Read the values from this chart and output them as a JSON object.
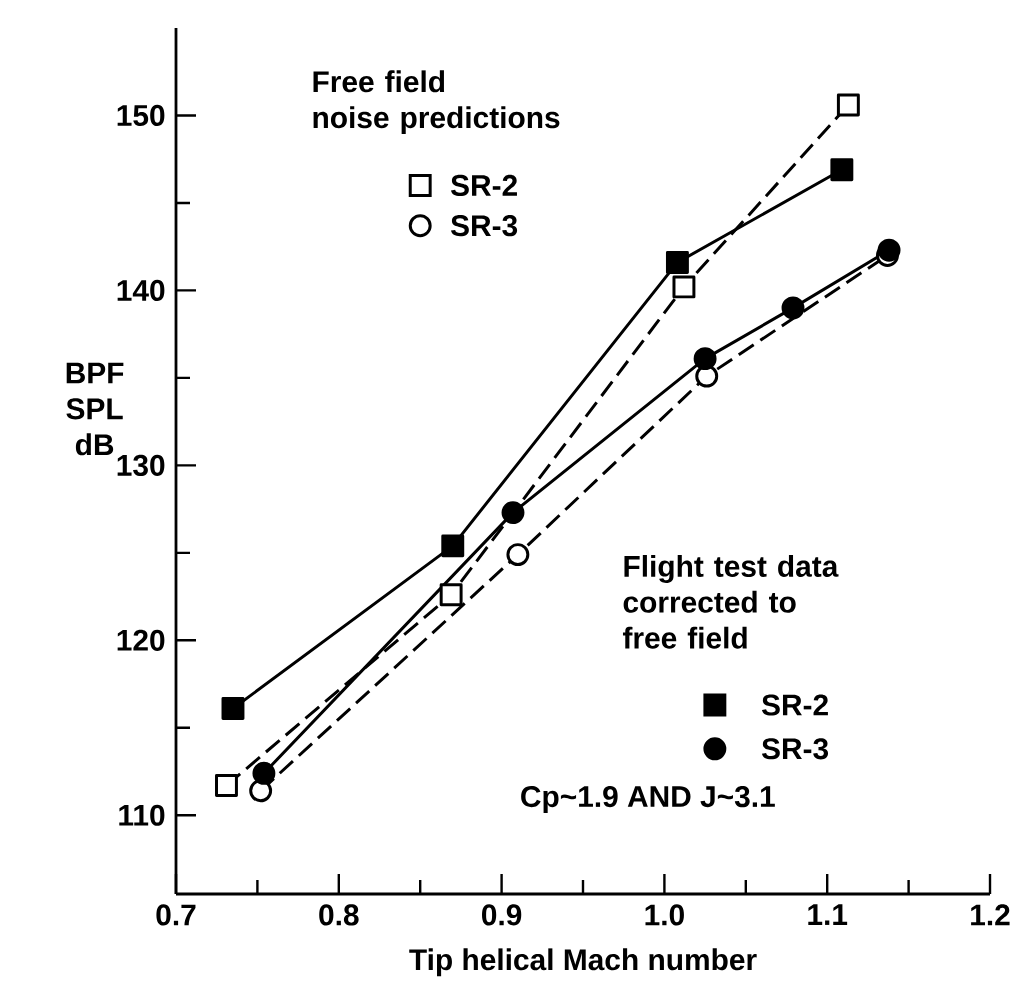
{
  "chart_data": {
    "type": "line",
    "xlabel": "Tip helical Mach number",
    "ylabel": "BPF SPL dB",
    "xlim": [
      0.7,
      1.2
    ],
    "ylim": [
      105.5,
      155
    ],
    "xticks": [
      0.7,
      0.8,
      0.9,
      {
        "value": 1.0,
        "label": "1.0"
      },
      1.1,
      1.2,
      {
        "value": 0.75,
        "label": null
      },
      {
        "value": 0.85,
        "label": null
      },
      {
        "value": 0.95,
        "label": null
      },
      {
        "value": 1.05,
        "label": null
      },
      {
        "value": 1.15,
        "label": null
      }
    ],
    "yticks": [
      110,
      120,
      130,
      140,
      150,
      {
        "value": 115,
        "label": null
      },
      {
        "value": 125,
        "label": null
      },
      {
        "value": 135,
        "label": null
      },
      {
        "value": 145,
        "label": null
      }
    ],
    "legend": "center",
    "grid": false,
    "series": [
      {
        "name": "SR-2",
        "color": "#000000",
        "marker": "square",
        "line_style": "dashed",
        "x": [
          0.731,
          0.869,
          1.012,
          1.113
        ],
        "values": [
          111.7,
          122.6,
          140.2,
          150.6
        ]
      },
      {
        "name": "SR-3",
        "color": "#000000",
        "marker": "circle",
        "line_style": "dashed",
        "x": [
          0.752,
          0.91,
          1.026,
          1.137
        ],
        "values": [
          111.4,
          124.9,
          135.1,
          142.0
        ]
      },
      {
        "name": "SR-2",
        "color": "#000000",
        "marker": "square",
        "line_style": "solid",
        "x": [
          0.735,
          0.87,
          1.008,
          1.109
        ],
        "values": [
          116.1,
          125.4,
          141.6,
          146.9
        ]
      },
      {
        "name": "SR-3",
        "color": "#000000",
        "marker": "circle",
        "line_style": "solid",
        "x": [
          0.754,
          0.907,
          1.025,
          1.079,
          1.138
        ],
        "values": [
          112.4,
          127.3,
          136.1,
          139.0,
          142.3
        ]
      }
    ],
    "annotations": [
      "Free field noise predictions",
      "Flight test data corrected to free field",
      "Cp~1.9 AND J~3.1"
    ]
  }
}
